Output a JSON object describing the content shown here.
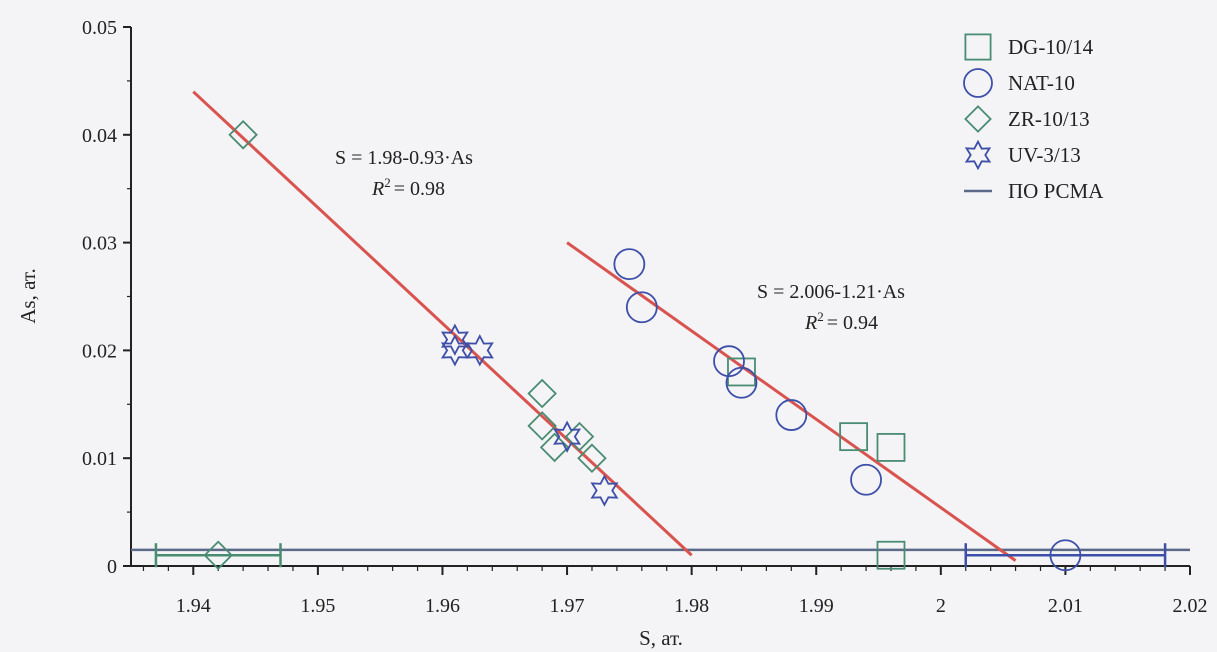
{
  "colors": {
    "green": "#4a8c72",
    "blue": "#3d4fa8",
    "red": "#d9534f",
    "ref_line": "#5b6a86",
    "axis": "#222222"
  },
  "chart_data": {
    "type": "scatter",
    "xlabel": "S, ат.",
    "ylabel": "As, ат.",
    "xlim": [
      1.935,
      2.02
    ],
    "ylim": [
      0,
      0.05
    ],
    "x_ticks": [
      "1.94",
      "1.95",
      "1.96",
      "1.97",
      "1.98",
      "1.99",
      "2",
      "2.01",
      "2.02"
    ],
    "y_ticks": [
      "0",
      "0.01",
      "0.02",
      "0.03",
      "0.04",
      "0.05"
    ],
    "series": [
      {
        "name": "DG-10/14",
        "marker": "square",
        "color": "green",
        "points": [
          [
            1.984,
            0.018
          ],
          [
            1.993,
            0.012
          ],
          [
            1.996,
            0.011
          ],
          [
            1.996,
            0.001
          ]
        ]
      },
      {
        "name": "NAT-10",
        "marker": "circle",
        "color": "blue",
        "points": [
          [
            1.975,
            0.028
          ],
          [
            1.976,
            0.024
          ],
          [
            1.983,
            0.019
          ],
          [
            1.984,
            0.017
          ],
          [
            1.988,
            0.014
          ],
          [
            1.994,
            0.008
          ],
          [
            2.01,
            0.001
          ]
        ],
        "x_error": [
          null,
          null,
          null,
          null,
          null,
          null,
          [
            2.002,
            2.018
          ]
        ]
      },
      {
        "name": "ZR-10/13",
        "marker": "diamond",
        "color": "green",
        "points": [
          [
            1.944,
            0.04
          ],
          [
            1.968,
            0.016
          ],
          [
            1.968,
            0.013
          ],
          [
            1.969,
            0.011
          ],
          [
            1.971,
            0.012
          ],
          [
            1.972,
            0.01
          ],
          [
            1.942,
            0.001
          ]
        ],
        "x_error": [
          null,
          null,
          null,
          null,
          null,
          null,
          [
            1.937,
            1.947
          ]
        ]
      },
      {
        "name": "UV-3/13",
        "marker": "star",
        "color": "blue",
        "points": [
          [
            1.961,
            0.021
          ],
          [
            1.961,
            0.02
          ],
          [
            1.963,
            0.02
          ],
          [
            1.97,
            0.012
          ],
          [
            1.973,
            0.007
          ]
        ]
      },
      {
        "name": "ПО РСМА",
        "marker": "hline",
        "color": "ref_line",
        "y": 0.0015
      }
    ],
    "fit_lines": [
      {
        "from": [
          1.94,
          0.044
        ],
        "to": [
          1.98,
          0.001
        ],
        "color": "red"
      },
      {
        "from": [
          1.97,
          0.03
        ],
        "to": [
          2.006,
          0.0005
        ],
        "color": "red"
      }
    ],
    "annotations": [
      {
        "line1": "S = 1.98-0.93·As",
        "r2_label": "R",
        "r2_sup": "2",
        "r2_value": "= 0.98"
      },
      {
        "line1": "S = 2.006-1.21·As",
        "r2_label": "R",
        "r2_sup": "2",
        "r2_value": "= 0.94"
      }
    ],
    "legend_position": "top-right",
    "grid": false
  }
}
